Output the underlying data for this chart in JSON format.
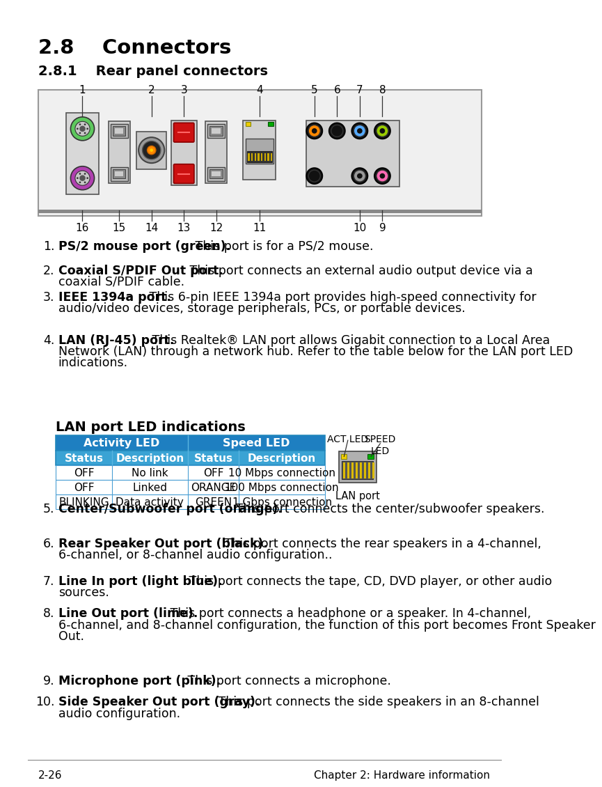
{
  "title_28": "2.8    Connectors",
  "title_281": "2.8.1    Rear panel connectors",
  "bg_color": "#ffffff",
  "header_blue": "#1e7fc1",
  "header_text_color": "#ffffff",
  "subheader_blue": "#3aa3d4",
  "table_border": "#4a9fd4",
  "lan_title": "LAN port LED indications",
  "table_headers_sub": [
    "Status",
    "Description",
    "Status",
    "Description"
  ],
  "table_rows": [
    [
      "OFF",
      "No link",
      "OFF",
      "10 Mbps connection"
    ],
    [
      "OFF",
      "Linked",
      "ORANGE",
      "100 Mbps connection"
    ],
    [
      "BLINKING",
      "Data activity",
      "GREEN",
      "1 Gbps connection"
    ]
  ],
  "items": [
    {
      "num": "1.",
      "bold": "PS/2 mouse port (green).",
      "text": " This port is for a PS/2 mouse.",
      "lines": 1
    },
    {
      "num": "2.",
      "bold": "Coaxial S/PDIF Out port.",
      "text": " This port connects an external audio output device via a coaxial S/PDIF cable.",
      "lines": 2
    },
    {
      "num": "3.",
      "bold": "IEEE 1394a port.",
      "text": " This 6-pin IEEE 1394a port provides high-speed connectivity for audio/video devices, storage peripherals, PCs, or portable devices.",
      "lines": 3
    },
    {
      "num": "4.",
      "bold": "LAN (RJ-45) port.",
      "text": " This Realtek® LAN port allows Gigabit connection to a Local Area Network (LAN) through a network hub. Refer to the table below for the LAN port LED indications.",
      "lines": 3
    },
    {
      "num": "5.",
      "bold": "Center/Subwoofer port (orange).",
      "text": " This port connects the center/subwoofer speakers.",
      "lines": 2
    },
    {
      "num": "6.",
      "bold": "Rear Speaker Out port (black).",
      "text": " This port connects the rear speakers in a 4-channel, 6-channel, or 8-channel audio configuration..",
      "lines": 2
    },
    {
      "num": "7.",
      "bold": "Line In port (light blue).",
      "text": " This port connects the tape, CD, DVD player, or other audio sources.",
      "lines": 2
    },
    {
      "num": "8.",
      "bold": "Line Out port (lime).",
      "text": " This port connects a headphone or a speaker. In 4-channel, 6-channel, and 8-channel configuration, the function of this port becomes Front Speaker Out.",
      "lines": 3
    },
    {
      "num": "9.",
      "bold": "Microphone port (pink).",
      "text": " This port connects a microphone.",
      "lines": 1
    },
    {
      "num": "10.",
      "bold": "Side Speaker Out port (gray).",
      "text": " This port connects the side speakers in an 8-channel audio configuration.",
      "lines": 2
    }
  ],
  "footer_left": "2-26",
  "footer_right": "Chapter 2: Hardware information"
}
